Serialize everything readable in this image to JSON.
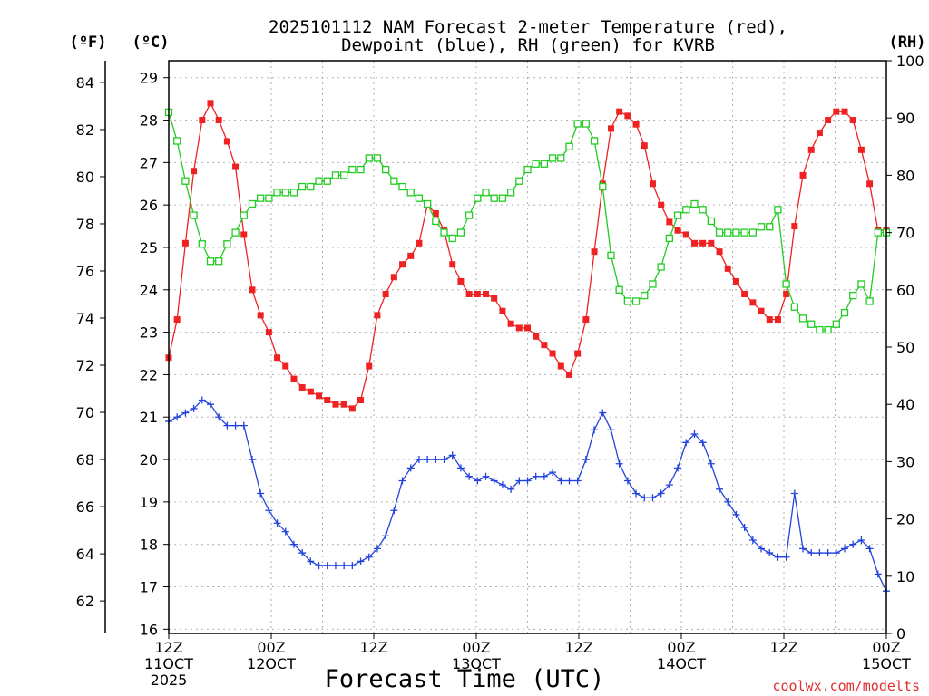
{
  "chart_data": {
    "type": "line",
    "title_line1": "2025101112 NAM Forecast 2-meter Temperature (red),",
    "title_line2": "Dewpoint (blue), RH (green) for KVRB",
    "station": "KVRB",
    "xlabel": "Forecast Time (UTC)",
    "credit": "coolwx.com/modelts",
    "y_left_outer_label": "(ºF)",
    "y_left_inner_label": "(ºC)",
    "y_right_label": "(RH)",
    "x_range_hours": [
      0,
      84
    ],
    "x_ticks": [
      {
        "hour": 0,
        "line1": "12Z",
        "line2": "11OCT",
        "line3": "2025"
      },
      {
        "hour": 12,
        "line1": "00Z",
        "line2": "12OCT",
        "line3": ""
      },
      {
        "hour": 24,
        "line1": "12Z",
        "line2": "",
        "line3": ""
      },
      {
        "hour": 36,
        "line1": "00Z",
        "line2": "13OCT",
        "line3": ""
      },
      {
        "hour": 48,
        "line1": "12Z",
        "line2": "",
        "line3": ""
      },
      {
        "hour": 60,
        "line1": "00Z",
        "line2": "14OCT",
        "line3": ""
      },
      {
        "hour": 72,
        "line1": "12Z",
        "line2": "",
        "line3": ""
      },
      {
        "hour": 84,
        "line1": "00Z",
        "line2": "15OCT",
        "line3": ""
      }
    ],
    "celsius_range": [
      15.9,
      29.4
    ],
    "celsius_ticks": [
      16,
      17,
      18,
      19,
      20,
      21,
      22,
      23,
      24,
      25,
      26,
      27,
      28,
      29
    ],
    "fahrenheit_ticks": [
      62,
      64,
      66,
      68,
      70,
      72,
      74,
      76,
      78,
      80,
      82,
      84
    ],
    "rh_range": [
      0,
      100
    ],
    "rh_ticks": [
      0,
      10,
      20,
      30,
      40,
      50,
      60,
      70,
      80,
      90,
      100
    ],
    "series": [
      {
        "name": "Temperature",
        "unit": "C",
        "color": "#ee2222",
        "marker": "filled-square",
        "values": [
          22.4,
          23.3,
          25.1,
          26.8,
          28.0,
          28.4,
          28.0,
          27.5,
          26.9,
          25.3,
          24.0,
          23.4,
          23.0,
          22.4,
          22.2,
          21.9,
          21.7,
          21.6,
          21.5,
          21.4,
          21.3,
          21.3,
          21.2,
          21.4,
          22.2,
          23.4,
          23.9,
          24.3,
          24.6,
          24.8,
          25.1,
          26.0,
          25.8,
          25.4,
          24.6,
          24.2,
          23.9,
          23.9,
          23.9,
          23.8,
          23.5,
          23.2,
          23.1,
          23.1,
          22.9,
          22.7,
          22.5,
          22.2,
          22.0,
          22.5,
          23.3,
          24.9,
          26.5,
          27.8,
          28.2,
          28.1,
          27.9,
          27.4,
          26.5,
          26.0,
          25.6,
          25.4,
          25.3,
          25.1,
          25.1,
          25.1,
          24.9,
          24.5,
          24.2,
          23.9,
          23.7,
          23.5,
          23.3,
          23.3,
          23.9,
          25.5,
          26.7,
          27.3,
          27.7,
          28.0,
          28.2,
          28.2,
          28.0,
          27.3,
          26.5,
          25.4,
          25.4
        ]
      },
      {
        "name": "Dewpoint",
        "unit": "C",
        "color": "#2244dd",
        "marker": "plus",
        "values": [
          20.9,
          21.0,
          21.1,
          21.2,
          21.4,
          21.3,
          21.0,
          20.8,
          20.8,
          20.8,
          20.0,
          19.2,
          18.8,
          18.5,
          18.3,
          18.0,
          17.8,
          17.6,
          17.5,
          17.5,
          17.5,
          17.5,
          17.5,
          17.6,
          17.7,
          17.9,
          18.2,
          18.8,
          19.5,
          19.8,
          20.0,
          20.0,
          20.0,
          20.0,
          20.1,
          19.8,
          19.6,
          19.5,
          19.6,
          19.5,
          19.4,
          19.3,
          19.5,
          19.5,
          19.6,
          19.6,
          19.7,
          19.5,
          19.5,
          19.5,
          20.0,
          20.7,
          21.1,
          20.7,
          19.9,
          19.5,
          19.2,
          19.1,
          19.1,
          19.2,
          19.4,
          19.8,
          20.4,
          20.6,
          20.4,
          19.9,
          19.3,
          19.0,
          18.7,
          18.4,
          18.1,
          17.9,
          17.8,
          17.7,
          17.7,
          19.2,
          17.9,
          17.8,
          17.8,
          17.8,
          17.8,
          17.9,
          18.0,
          18.1,
          17.9,
          17.3,
          16.9
        ]
      },
      {
        "name": "Relative Humidity",
        "unit": "%",
        "color": "#22cc22",
        "marker": "open-square",
        "values": [
          91,
          86,
          79,
          73,
          68,
          65,
          65,
          68,
          70,
          73,
          75,
          76,
          76,
          77,
          77,
          77,
          78,
          78,
          79,
          79,
          80,
          80,
          81,
          81,
          83,
          83,
          81,
          79,
          78,
          77,
          76,
          75,
          72,
          70,
          69,
          70,
          73,
          76,
          77,
          76,
          76,
          77,
          79,
          81,
          82,
          82,
          83,
          83,
          85,
          89,
          89,
          86,
          78,
          66,
          60,
          58,
          58,
          59,
          61,
          64,
          69,
          73,
          74,
          75,
          74,
          72,
          70,
          70,
          70,
          70,
          70,
          71,
          71,
          74,
          61,
          57,
          55,
          54,
          53,
          53,
          54,
          56,
          59,
          61,
          58,
          70,
          70
        ]
      }
    ]
  }
}
